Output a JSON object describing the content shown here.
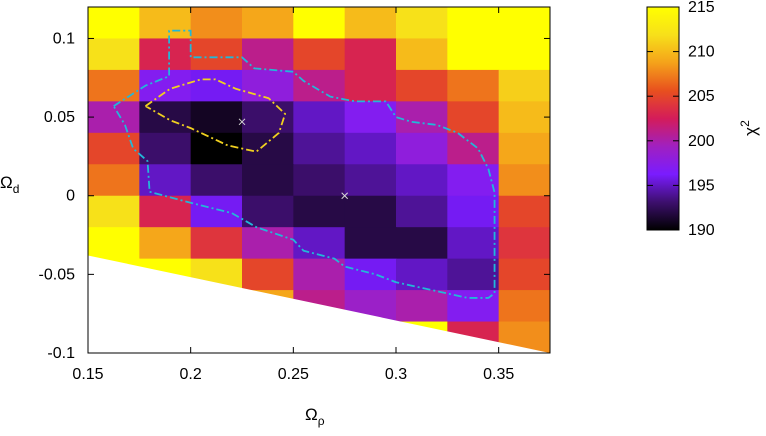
{
  "chart_data": {
    "type": "heatmap",
    "title": "",
    "xlabel": "Ω",
    "xlabel_subscript": "ρ",
    "ylabel": "Ω",
    "ylabel_subscript": "d",
    "xlim": [
      0.15,
      0.375
    ],
    "ylim": [
      -0.1,
      0.12
    ],
    "x_ticks": [
      0.15,
      0.2,
      0.25,
      0.3,
      0.35
    ],
    "x_tick_labels": [
      "0.15",
      "0.2",
      "0.25",
      "0.3",
      "0.35"
    ],
    "y_ticks": [
      -0.1,
      -0.05,
      0,
      0.05,
      0.1
    ],
    "y_tick_labels": [
      "-0.1",
      "-0.05",
      "0",
      "0.05",
      "0.1"
    ],
    "colorbar": {
      "label": "χ",
      "label_superscript": "2",
      "range": [
        190,
        215
      ],
      "ticks": [
        190,
        195,
        200,
        205,
        210,
        215
      ],
      "tick_labels": [
        "190",
        "195",
        "200",
        "205",
        "210",
        "215"
      ],
      "palette": [
        "#000000",
        "#3d0f6e",
        "#7a1cff",
        "#a020c0",
        "#d41c5a",
        "#e8501e",
        "#f5a21a",
        "#f7e01a",
        "#ffff00"
      ]
    },
    "grid": {
      "x_centers": [
        0.1625,
        0.1875,
        0.2125,
        0.2375,
        0.2625,
        0.2875,
        0.3125,
        0.3375,
        0.3625
      ],
      "y_centers": [
        0.11,
        0.09,
        0.07,
        0.05,
        0.03,
        0.01,
        -0.01,
        -0.03,
        -0.05,
        -0.07,
        -0.09
      ],
      "cell_width": 0.025,
      "cell_height": 0.02,
      "values": [
        [
          215,
          210,
          208,
          209,
          215,
          210,
          212,
          215,
          215
        ],
        [
          212,
          203,
          205,
          201,
          205,
          203,
          210,
          215,
          215
        ],
        [
          207,
          197,
          196,
          198,
          201,
          203,
          205,
          207,
          211
        ],
        [
          200,
          192,
          191,
          193,
          195,
          197,
          200,
          205,
          210
        ],
        [
          205,
          193,
          190,
          192,
          194,
          195,
          198,
          201,
          209
        ],
        [
          207,
          195,
          193,
          192,
          193,
          194,
          195,
          197,
          208
        ],
        [
          212,
          203,
          196,
          193,
          192,
          192,
          194,
          196,
          205
        ],
        [
          215,
          209,
          204,
          200,
          195,
          192,
          192,
          195,
          204
        ],
        [
          215,
          215,
          212,
          205,
          200,
          196,
          195,
          194,
          205
        ],
        [
          215,
          215,
          215,
          209,
          201,
          199,
          200,
          197,
          207
        ],
        [
          215,
          215,
          215,
          215,
          215,
          215,
          215,
          203,
          208
        ]
      ],
      "mask_line": {
        "from": [
          0.15,
          -0.038
        ],
        "to": [
          0.375,
          -0.1
        ]
      }
    },
    "contours": [
      {
        "name": "outer",
        "color": "#22b8d8",
        "points": [
          [
            0.1625,
            0.057
          ],
          [
            0.178,
            0.07
          ],
          [
            0.1895,
            0.076
          ],
          [
            0.1895,
            0.105
          ],
          [
            0.2,
            0.105
          ],
          [
            0.2,
            0.088
          ],
          [
            0.225,
            0.088
          ],
          [
            0.231,
            0.081
          ],
          [
            0.25,
            0.0788
          ],
          [
            0.255,
            0.073
          ],
          [
            0.268,
            0.063
          ],
          [
            0.28,
            0.06
          ],
          [
            0.295,
            0.06
          ],
          [
            0.3,
            0.05
          ],
          [
            0.3075,
            0.047
          ],
          [
            0.32,
            0.045
          ],
          [
            0.33,
            0.04
          ],
          [
            0.34,
            0.03
          ],
          [
            0.345,
            0.017
          ],
          [
            0.348,
            0.002
          ],
          [
            0.348,
            -0.062
          ],
          [
            0.345,
            -0.065
          ],
          [
            0.335,
            -0.065
          ],
          [
            0.3,
            -0.055
          ],
          [
            0.29,
            -0.05
          ],
          [
            0.275,
            -0.045
          ],
          [
            0.27,
            -0.04
          ],
          [
            0.255,
            -0.035
          ],
          [
            0.25,
            -0.028
          ],
          [
            0.232,
            -0.02
          ],
          [
            0.22,
            -0.011
          ],
          [
            0.2,
            -0.0045
          ],
          [
            0.18,
            0.0025
          ],
          [
            0.179,
            0.022
          ],
          [
            0.172,
            0.03
          ],
          [
            0.168,
            0.045
          ],
          [
            0.1625,
            0.057
          ]
        ]
      },
      {
        "name": "inner",
        "color": "#f0d020",
        "points": [
          [
            0.178,
            0.057
          ],
          [
            0.19,
            0.068
          ],
          [
            0.205,
            0.074
          ],
          [
            0.212,
            0.074
          ],
          [
            0.222,
            0.068
          ],
          [
            0.238,
            0.062
          ],
          [
            0.246,
            0.052
          ],
          [
            0.243,
            0.04
          ],
          [
            0.232,
            0.028
          ],
          [
            0.218,
            0.032
          ],
          [
            0.2,
            0.043
          ],
          [
            0.19,
            0.048
          ],
          [
            0.178,
            0.057
          ]
        ]
      }
    ],
    "markers": [
      {
        "name": "minimum-marker-1",
        "x": 0.225,
        "y": 0.047
      },
      {
        "name": "minimum-marker-2",
        "x": 0.275,
        "y": 0.0
      }
    ]
  }
}
